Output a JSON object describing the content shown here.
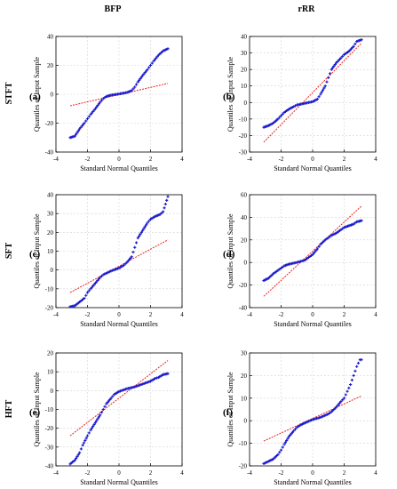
{
  "figure": {
    "column_headers": [
      "BFP",
      "rRR"
    ],
    "row_headers": [
      "STFT",
      "SFT",
      "HFT"
    ]
  },
  "style": {
    "point_color": "#1a1acc",
    "line_color": "#e8221b",
    "grid_color": "#d2d2d2",
    "axis_color": "#000000"
  },
  "chart_data": [
    {
      "type": "scatter",
      "panel_label": "(a)",
      "xlabel": "Standard Normal Quantiles",
      "ylabel": "Quantiles of Input Sample",
      "xlim": [
        -4,
        4
      ],
      "ylim": [
        -40,
        40
      ],
      "xticks": [
        -4,
        -2,
        0,
        2,
        4
      ],
      "yticks": [
        -40,
        -20,
        0,
        20,
        40
      ],
      "grid": true,
      "reference_line": {
        "x": [
          -3.1,
          3.1
        ],
        "y": [
          -8,
          7.5
        ]
      },
      "qq_points": [
        [
          -3.1,
          -30
        ],
        [
          -2.8,
          -29
        ],
        [
          -2.5,
          -24
        ],
        [
          -2.2,
          -20
        ],
        [
          -2.0,
          -17
        ],
        [
          -1.8,
          -14
        ],
        [
          -1.5,
          -10
        ],
        [
          -1.2,
          -5.5
        ],
        [
          -1.0,
          -3
        ],
        [
          -0.8,
          -1.5
        ],
        [
          -0.5,
          -0.6
        ],
        [
          0.0,
          0.2
        ],
        [
          0.5,
          1.2
        ],
        [
          0.8,
          2.5
        ],
        [
          1.0,
          5
        ],
        [
          1.2,
          8.5
        ],
        [
          1.5,
          13
        ],
        [
          1.8,
          17
        ],
        [
          2.0,
          20
        ],
        [
          2.2,
          23
        ],
        [
          2.5,
          27
        ],
        [
          2.8,
          30
        ],
        [
          3.1,
          31.5
        ]
      ]
    },
    {
      "type": "scatter",
      "panel_label": "(b)",
      "xlabel": "Standard Normal Quantiles",
      "ylabel": "Quantiles of Input Sample",
      "xlim": [
        -4,
        4
      ],
      "ylim": [
        -30,
        40
      ],
      "xticks": [
        -4,
        -2,
        0,
        2,
        4
      ],
      "yticks": [
        -30,
        -20,
        -10,
        0,
        10,
        20,
        30,
        40
      ],
      "grid": true,
      "reference_line": {
        "x": [
          -3.1,
          3.1
        ],
        "y": [
          -24,
          36
        ]
      },
      "qq_points": [
        [
          -3.1,
          -15
        ],
        [
          -2.8,
          -14
        ],
        [
          -2.5,
          -12.5
        ],
        [
          -2.2,
          -10
        ],
        [
          -2.0,
          -8
        ],
        [
          -1.8,
          -6
        ],
        [
          -1.5,
          -4
        ],
        [
          -1.2,
          -2.5
        ],
        [
          -1.0,
          -1.5
        ],
        [
          -0.5,
          -0.5
        ],
        [
          0.0,
          0.5
        ],
        [
          0.3,
          2
        ],
        [
          0.5,
          5
        ],
        [
          0.8,
          10
        ],
        [
          1.0,
          15
        ],
        [
          1.2,
          20
        ],
        [
          1.5,
          24
        ],
        [
          1.8,
          27
        ],
        [
          2.0,
          29
        ],
        [
          2.3,
          31
        ],
        [
          2.6,
          34
        ],
        [
          2.8,
          37
        ],
        [
          3.1,
          38
        ]
      ]
    },
    {
      "type": "scatter",
      "panel_label": "(c)",
      "xlabel": "Standard Normal Quantiles",
      "ylabel": "Quantiles of Input Sample",
      "xlim": [
        -4,
        4
      ],
      "ylim": [
        -20,
        40
      ],
      "xticks": [
        -4,
        -2,
        0,
        2,
        4
      ],
      "yticks": [
        -20,
        -10,
        0,
        10,
        20,
        30,
        40
      ],
      "grid": true,
      "reference_line": {
        "x": [
          -3.1,
          3.1
        ],
        "y": [
          -12,
          16
        ]
      },
      "qq_points": [
        [
          -3.1,
          -19.5
        ],
        [
          -2.8,
          -19
        ],
        [
          -2.5,
          -17
        ],
        [
          -2.2,
          -15
        ],
        [
          -2.0,
          -12
        ],
        [
          -1.8,
          -10
        ],
        [
          -1.5,
          -7
        ],
        [
          -1.2,
          -4
        ],
        [
          -1.0,
          -2.5
        ],
        [
          -0.5,
          -0.5
        ],
        [
          0.0,
          1
        ],
        [
          0.3,
          2.5
        ],
        [
          0.5,
          4
        ],
        [
          0.8,
          7
        ],
        [
          1.0,
          12
        ],
        [
          1.2,
          17
        ],
        [
          1.5,
          21
        ],
        [
          1.8,
          25
        ],
        [
          2.0,
          27
        ],
        [
          2.3,
          28.5
        ],
        [
          2.6,
          29.5
        ],
        [
          2.8,
          31
        ],
        [
          3.1,
          39
        ]
      ]
    },
    {
      "type": "scatter",
      "panel_label": "(d)",
      "xlabel": "Standard Normal Quantiles",
      "ylabel": "Quantiles of Input Sample",
      "xlim": [
        -4,
        4
      ],
      "ylim": [
        -40,
        60
      ],
      "xticks": [
        -4,
        -2,
        0,
        2,
        4
      ],
      "yticks": [
        -40,
        -20,
        0,
        20,
        40,
        60
      ],
      "grid": true,
      "reference_line": {
        "x": [
          -3.1,
          3.1
        ],
        "y": [
          -30,
          50
        ]
      },
      "qq_points": [
        [
          -3.1,
          -16
        ],
        [
          -2.8,
          -14
        ],
        [
          -2.5,
          -10
        ],
        [
          -2.2,
          -7
        ],
        [
          -2.0,
          -5
        ],
        [
          -1.8,
          -3
        ],
        [
          -1.5,
          -1.5
        ],
        [
          -1.0,
          0
        ],
        [
          -0.5,
          2
        ],
        [
          0.0,
          7
        ],
        [
          0.3,
          12
        ],
        [
          0.5,
          16
        ],
        [
          0.8,
          20
        ],
        [
          1.0,
          22
        ],
        [
          1.2,
          24
        ],
        [
          1.5,
          26
        ],
        [
          1.8,
          29
        ],
        [
          2.0,
          31
        ],
        [
          2.3,
          32.5
        ],
        [
          2.6,
          34
        ],
        [
          2.8,
          36
        ],
        [
          3.1,
          37
        ]
      ]
    },
    {
      "type": "scatter",
      "panel_label": "(e)",
      "xlabel": "Standard Normal Quantiles",
      "ylabel": "Quantiles of Input Sample",
      "xlim": [
        -4,
        4
      ],
      "ylim": [
        -40,
        20
      ],
      "xticks": [
        -4,
        -2,
        0,
        2,
        4
      ],
      "yticks": [
        -40,
        -30,
        -20,
        -10,
        0,
        10,
        20
      ],
      "grid": true,
      "reference_line": {
        "x": [
          -3.1,
          3.1
        ],
        "y": [
          -24,
          16
        ]
      },
      "qq_points": [
        [
          -3.1,
          -39
        ],
        [
          -2.8,
          -37
        ],
        [
          -2.5,
          -33
        ],
        [
          -2.3,
          -29
        ],
        [
          -2.0,
          -24
        ],
        [
          -1.8,
          -21
        ],
        [
          -1.5,
          -17
        ],
        [
          -1.2,
          -13
        ],
        [
          -1.0,
          -10
        ],
        [
          -0.8,
          -7
        ],
        [
          -0.5,
          -4
        ],
        [
          -0.3,
          -2
        ],
        [
          0.0,
          -0.5
        ],
        [
          0.5,
          1
        ],
        [
          1.0,
          2
        ],
        [
          1.5,
          3.5
        ],
        [
          2.0,
          5
        ],
        [
          2.3,
          6.5
        ],
        [
          2.5,
          7
        ],
        [
          2.8,
          8.5
        ],
        [
          3.1,
          9
        ]
      ]
    },
    {
      "type": "scatter",
      "panel_label": "(f)",
      "xlabel": "Standard Normal Quantiles",
      "ylabel": "Quantiles of Input Sample",
      "xlim": [
        -4,
        4
      ],
      "ylim": [
        -20,
        30
      ],
      "xticks": [
        -4,
        -2,
        0,
        2,
        4
      ],
      "yticks": [
        -20,
        -10,
        0,
        10,
        20,
        30
      ],
      "grid": true,
      "reference_line": {
        "x": [
          -3.1,
          3.1
        ],
        "y": [
          -9,
          11
        ]
      },
      "qq_points": [
        [
          -3.1,
          -19
        ],
        [
          -2.8,
          -18
        ],
        [
          -2.5,
          -17
        ],
        [
          -2.2,
          -15
        ],
        [
          -2.0,
          -13
        ],
        [
          -1.8,
          -10.5
        ],
        [
          -1.5,
          -7
        ],
        [
          -1.2,
          -4.5
        ],
        [
          -1.0,
          -3
        ],
        [
          -0.8,
          -2
        ],
        [
          -0.5,
          -1
        ],
        [
          0.0,
          0.5
        ],
        [
          0.5,
          1.5
        ],
        [
          1.0,
          3
        ],
        [
          1.2,
          4
        ],
        [
          1.5,
          6
        ],
        [
          1.8,
          8.5
        ],
        [
          2.0,
          10
        ],
        [
          2.2,
          13
        ],
        [
          2.4,
          16
        ],
        [
          2.6,
          20
        ],
        [
          2.8,
          24
        ],
        [
          3.0,
          27
        ],
        [
          3.1,
          27
        ]
      ]
    }
  ]
}
